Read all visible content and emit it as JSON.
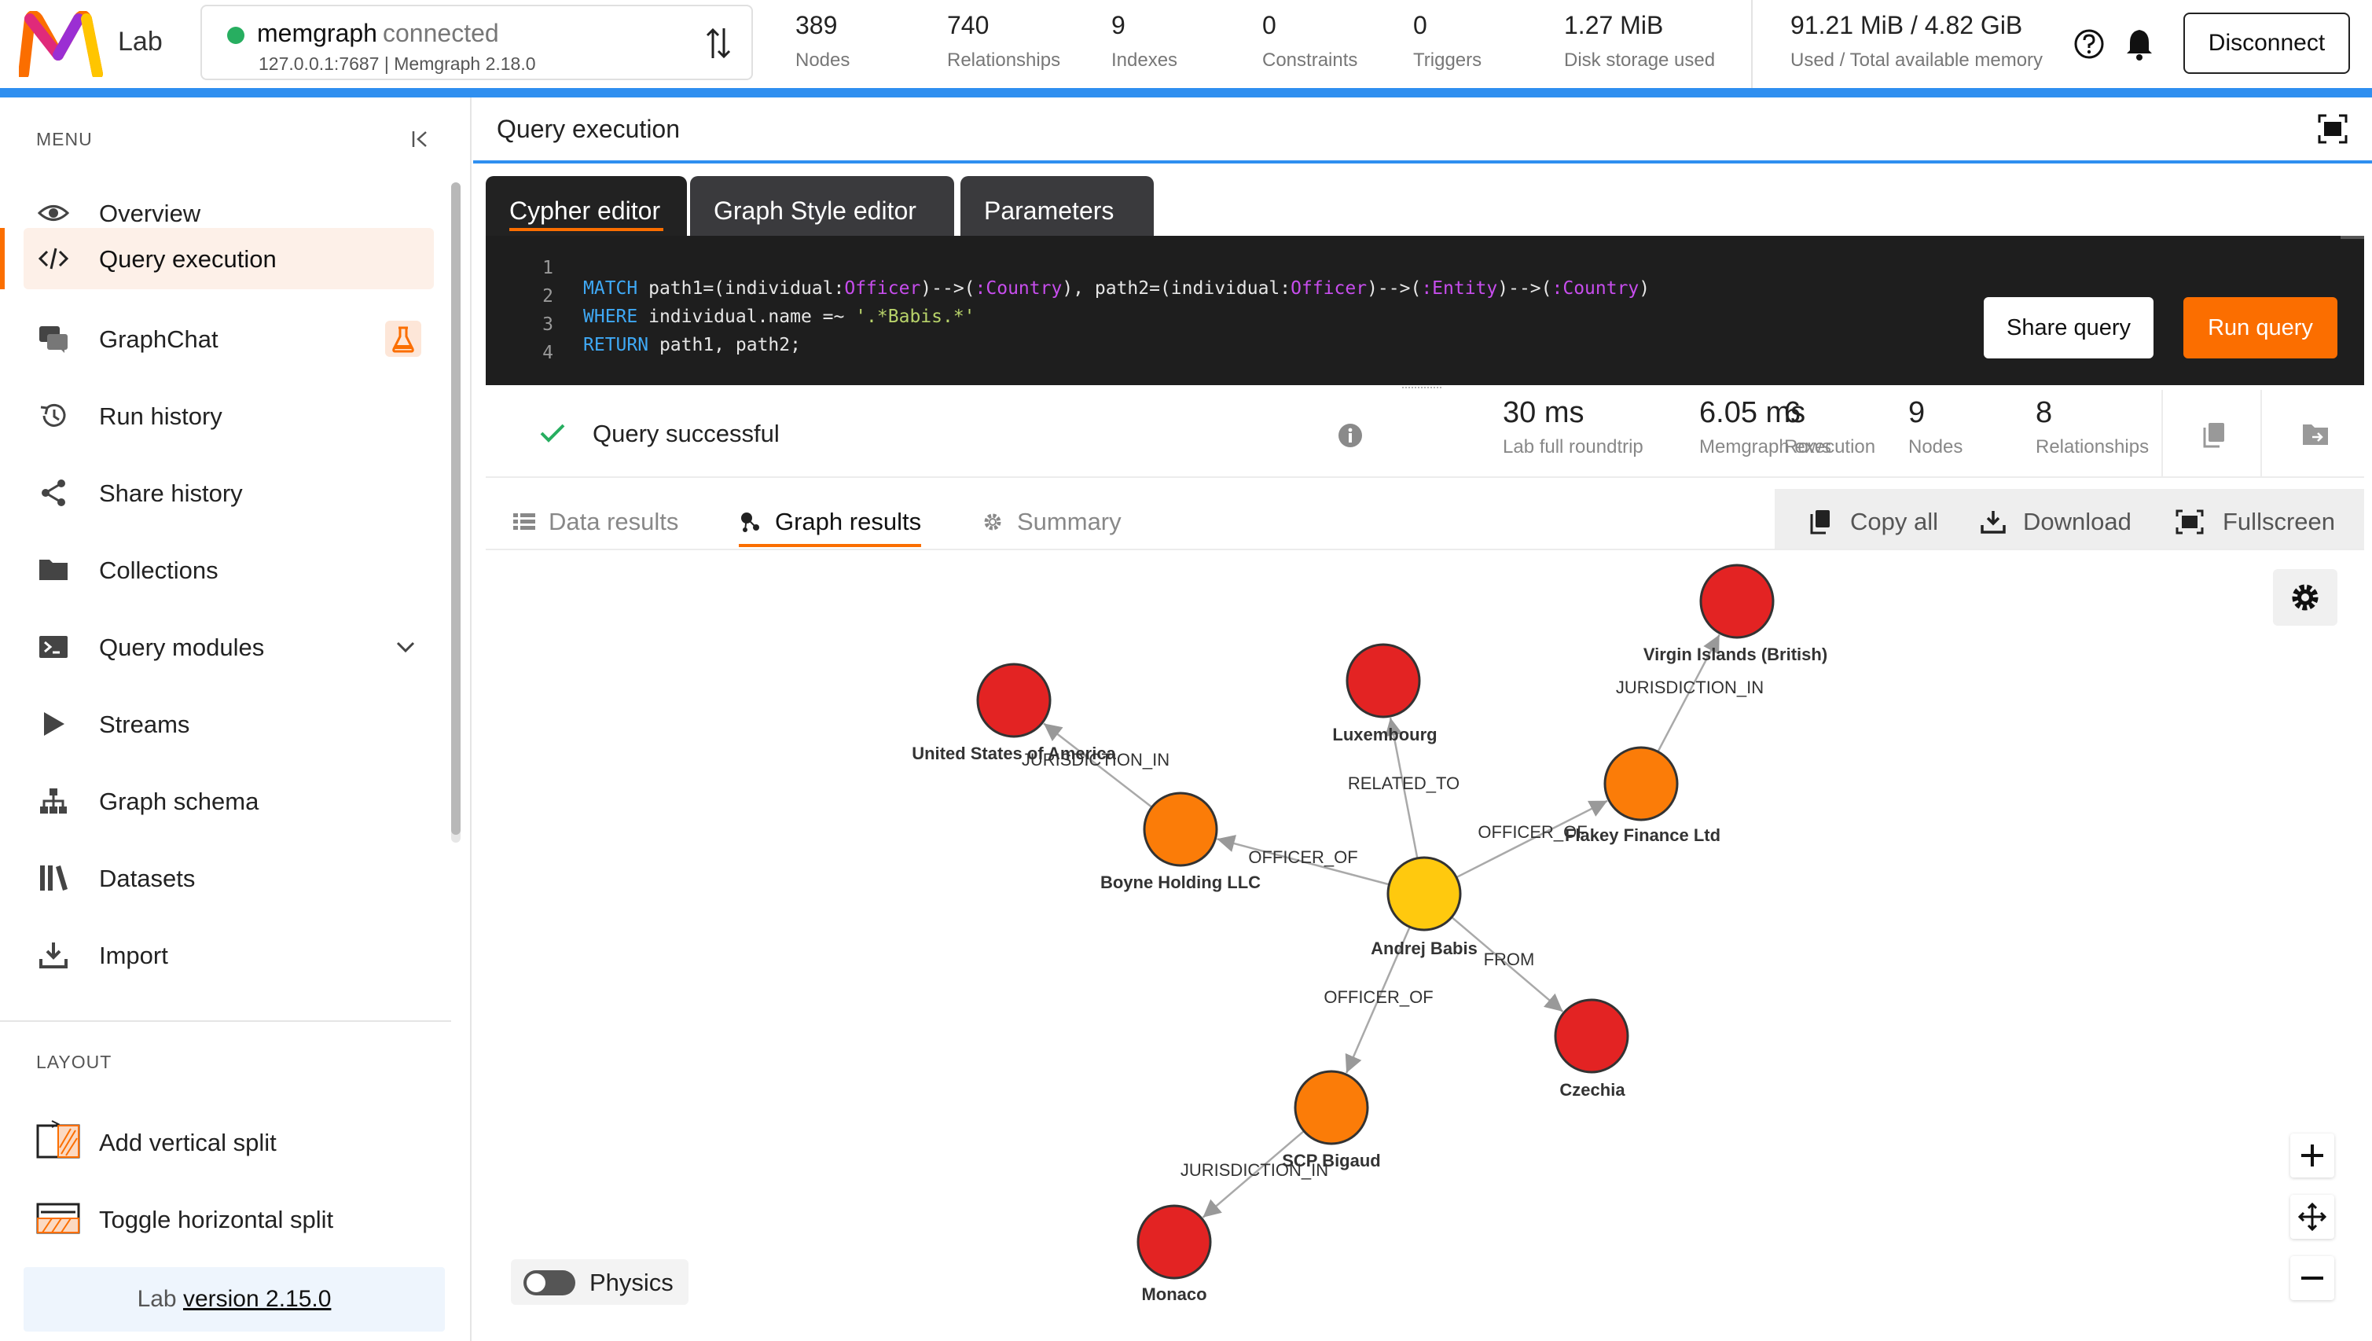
{
  "app": {
    "logo_text": "Lab",
    "connection": {
      "name": "memgraph",
      "status": "connected",
      "host": "127.0.0.1:7687",
      "version": "Memgraph 2.18.0",
      "status_color": "#27ae60"
    },
    "stats": [
      {
        "value": "389",
        "label": "Nodes"
      },
      {
        "value": "740",
        "label": "Relationships"
      },
      {
        "value": "9",
        "label": "Indexes"
      },
      {
        "value": "0",
        "label": "Constraints"
      },
      {
        "value": "0",
        "label": "Triggers"
      },
      {
        "value": "1.27 MiB",
        "label": "Disk storage used"
      }
    ],
    "memory": {
      "value": "91.21 MiB / 4.82 GiB",
      "label": "Used / Total available memory"
    },
    "disconnect_label": "Disconnect",
    "accent_color": "#fb6e00",
    "header_bar_color": "#2f8ff0"
  },
  "sidebar": {
    "menu_label": "MENU",
    "items": [
      {
        "label": "Overview",
        "icon": "eye-icon"
      },
      {
        "label": "Query execution",
        "icon": "code-icon",
        "active": true
      },
      {
        "label": "GraphChat",
        "icon": "chat-icon",
        "badge": "flask-icon"
      },
      {
        "label": "Run history",
        "icon": "history-icon"
      },
      {
        "label": "Share history",
        "icon": "share-icon"
      },
      {
        "label": "Collections",
        "icon": "folder-icon"
      },
      {
        "label": "Query modules",
        "icon": "terminal-icon",
        "expandable": true
      },
      {
        "label": "Streams",
        "icon": "play-icon"
      },
      {
        "label": "Graph schema",
        "icon": "schema-icon"
      },
      {
        "label": "Datasets",
        "icon": "library-icon"
      },
      {
        "label": "Import",
        "icon": "import-icon"
      }
    ],
    "layout_label": "LAYOUT",
    "layout_items": [
      {
        "label": "Add vertical split",
        "icon": "vertical-split-icon"
      },
      {
        "label": "Toggle horizontal split",
        "icon": "horizontal-split-icon"
      }
    ],
    "version_prefix": "Lab",
    "version_link": "version 2.15.0"
  },
  "main": {
    "title": "Query execution",
    "editor_tabs": [
      "Cypher editor",
      "Graph Style editor",
      "Parameters"
    ],
    "code_lines": [
      "1",
      "2",
      "3",
      "4"
    ],
    "code": {
      "line1": [
        "MATCH",
        " path1=(individual:",
        "Officer",
        ")-->(",
        ":Country",
        "), path2=(individual:",
        "Officer",
        ")-->(",
        ":Entity",
        ")-->(",
        ":Country",
        ")"
      ],
      "line2": [
        "WHERE",
        " individual.name =~ ",
        "'.*Babis.*'"
      ],
      "line3": [
        "RETURN",
        " path1, path2;"
      ]
    },
    "share_query_label": "Share query",
    "run_query_label": "Run query",
    "result": {
      "status": "Query successful",
      "stats": [
        {
          "value": "30 ms",
          "label": "Lab full roundtrip"
        },
        {
          "value": "6.05 ms",
          "label": "Memgraph execution"
        },
        {
          "value": "6",
          "label": "Rows"
        },
        {
          "value": "9",
          "label": "Nodes"
        },
        {
          "value": "8",
          "label": "Relationships"
        }
      ]
    },
    "results_tabs": [
      {
        "label": "Data results",
        "icon": "table-icon"
      },
      {
        "label": "Graph results",
        "icon": "graph-icon",
        "active": true
      },
      {
        "label": "Summary",
        "icon": "gear-icon"
      }
    ],
    "results_actions": [
      {
        "label": "Copy all",
        "icon": "copy-icon"
      },
      {
        "label": "Download",
        "icon": "download-icon"
      },
      {
        "label": "Fullscreen",
        "icon": "fullscreen-icon"
      }
    ],
    "physics_label": "Physics",
    "physics_enabled": false
  },
  "graph": {
    "node_colors": {
      "individual": "#ffc90e",
      "entity": "#fb7c08",
      "country": "#e32323"
    },
    "nodes": [
      {
        "id": "babis",
        "label": "Andrej Babis",
        "kind": "individual"
      },
      {
        "id": "boyne",
        "label": "Boyne Holding LLC",
        "kind": "entity"
      },
      {
        "id": "flakey",
        "label": "Flakey Finance Ltd",
        "kind": "entity"
      },
      {
        "id": "scp",
        "label": "SCP Bigaud",
        "kind": "entity"
      },
      {
        "id": "usa",
        "label": "United States of America",
        "kind": "country"
      },
      {
        "id": "lux",
        "label": "Luxembourg",
        "kind": "country"
      },
      {
        "id": "bvi",
        "label": "Virgin Islands (British)",
        "kind": "country"
      },
      {
        "id": "cz",
        "label": "Czechia",
        "kind": "country"
      },
      {
        "id": "monaco",
        "label": "Monaco",
        "kind": "country"
      }
    ],
    "edges": [
      {
        "from": "babis",
        "to": "boyne",
        "label": "OFFICER_OF"
      },
      {
        "from": "babis",
        "to": "flakey",
        "label": "OFFICER_OF"
      },
      {
        "from": "babis",
        "to": "scp",
        "label": "OFFICER_OF"
      },
      {
        "from": "babis",
        "to": "lux",
        "label": "RELATED_TO"
      },
      {
        "from": "babis",
        "to": "cz",
        "label": "FROM"
      },
      {
        "from": "boyne",
        "to": "usa",
        "label": "JURISDICTION_IN"
      },
      {
        "from": "flakey",
        "to": "bvi",
        "label": "JURISDICTION_IN"
      },
      {
        "from": "scp",
        "to": "monaco",
        "label": "JURISDICTION_IN"
      }
    ]
  }
}
